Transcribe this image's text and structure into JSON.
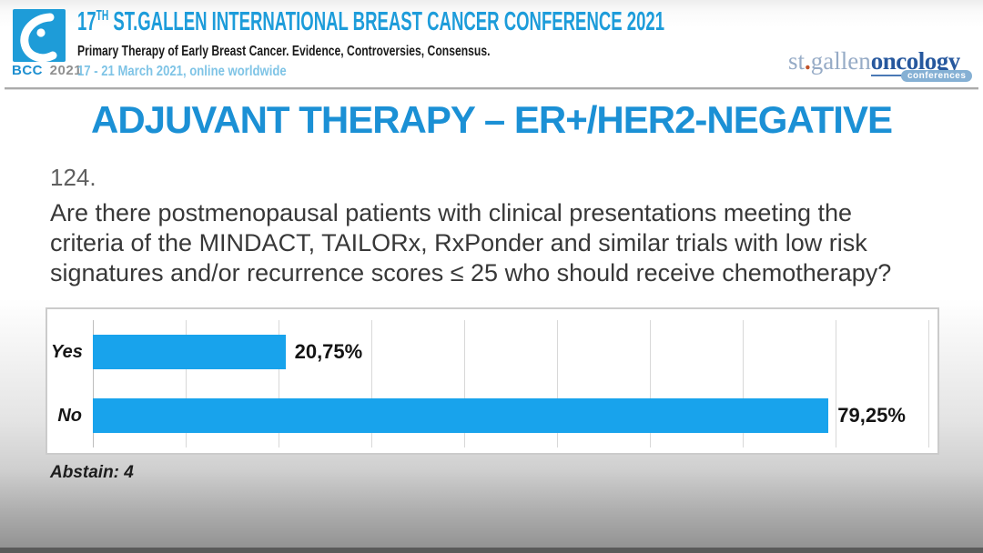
{
  "header": {
    "logo_bcc": "BCC",
    "logo_year": "2021",
    "title_number": "17",
    "title_sup": "TH",
    "title_rest": " ST.GALLEN INTERNATIONAL BREAST CANCER CONFERENCE 2021",
    "subtitle": "Primary Therapy of Early Breast Cancer. Evidence, Controversies, Consensus.",
    "dates": "17 - 21 March 2021, online worldwide",
    "org": {
      "st_gallen": "st",
      "dot": ".",
      "gallen": "gallen",
      "oncology": "oncology",
      "badge": "conferences"
    }
  },
  "slide": {
    "title": "ADJUVANT THERAPY – ER+/HER2-NEGATIVE",
    "question_number": "124.",
    "question_lines": [
      "Are there postmenopausal patients with clinical presentations meeting the",
      "criteria of the MINDACT, TAILORx, RxPonder and similar trials with low risk",
      "signatures and/or recurrence scores ≤ 25 who should receive chemotherapy?"
    ],
    "abstain": "Abstain: 4"
  },
  "chart_data": {
    "type": "bar",
    "orientation": "horizontal",
    "categories": [
      "Yes",
      "No"
    ],
    "values": [
      20.75,
      79.25
    ],
    "value_labels": [
      "20,75%",
      "79,25%"
    ],
    "axis_min": 0,
    "axis_max": 90,
    "gridline_step": 10,
    "grid": true,
    "bar_color": "#18a3ec",
    "abstain": 4
  },
  "colors": {
    "header_blue": "#1d9cda",
    "title_blue": "#1b90d5",
    "bar_blue": "#18a3ec",
    "dates_blue": "#7fc4e6",
    "logo_square_blue": "#1e9cd8"
  }
}
